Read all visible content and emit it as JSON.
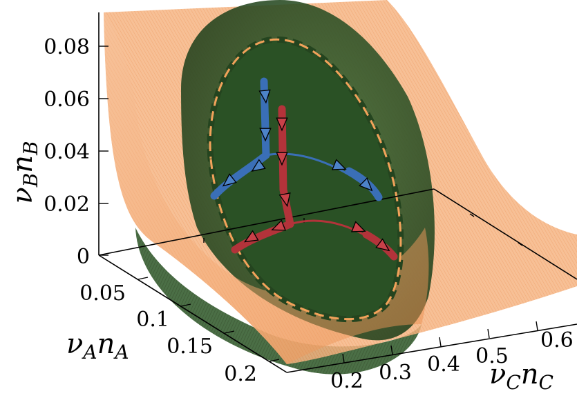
{
  "chart_data": {
    "type": "surface3d",
    "title": "",
    "axes": {
      "x": {
        "label_main": "ν",
        "label_sub1": "A",
        "label_mid": "n",
        "label_sub2": "A",
        "ticks": [
          "0.05",
          "0.1",
          "0.15",
          "0.2"
        ],
        "range": [
          0.02,
          0.22
        ]
      },
      "y": {
        "label_main": "ν",
        "label_sub1": "C",
        "label_mid": "n",
        "label_sub2": "C",
        "ticks": [
          "0.2",
          "0.3",
          "0.4",
          "0.5",
          "0.6"
        ],
        "range": [
          0.15,
          0.65
        ]
      },
      "z": {
        "label_main": "ν",
        "label_sub1": "B",
        "label_mid": "n",
        "label_sub2": "B",
        "ticks": [
          "0",
          "0.02",
          "0.04",
          "0.06",
          "0.08"
        ],
        "range": [
          0,
          0.09
        ]
      }
    },
    "surfaces": [
      {
        "name": "",
        "color": "#f4a46a",
        "shape": "saddle-sheet"
      },
      {
        "name": "",
        "color": "#2f5a2a",
        "shape": "ellipsoid-cap"
      }
    ],
    "boundary_curves": [
      {
        "color": "#2a4d25",
        "style": "dashed",
        "role": "outer"
      },
      {
        "color": "#f2a25a",
        "style": "dashed",
        "role": "inner"
      }
    ],
    "trajectories": [
      {
        "color": "#3a6fb7",
        "branch": "upper",
        "arrow_count": 6
      },
      {
        "color": "#b3333a",
        "branch": "lower",
        "arrow_count": 7
      }
    ]
  }
}
